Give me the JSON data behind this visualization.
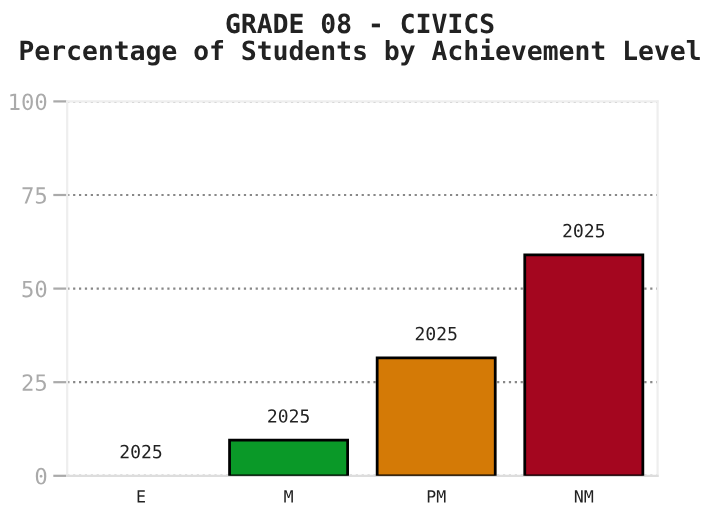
{
  "chart_data": {
    "type": "bar",
    "title": "GRADE 08 - CIVICS\nPercentage of Students by Achievement Level",
    "categories": [
      "E",
      "M",
      "PM",
      "NM"
    ],
    "values": [
      0,
      9.5,
      31.5,
      59
    ],
    "colors": [
      null,
      "#0a9928",
      "#d47a06",
      "#a4061f"
    ],
    "annotations": [
      {
        "text": "2025",
        "x": "E",
        "y": 0
      },
      {
        "text": "2025",
        "x": "M",
        "y": 9.5
      },
      {
        "text": "2025",
        "x": "PM",
        "y": 31.5
      },
      {
        "text": "2025",
        "x": "NM",
        "y": 59
      }
    ],
    "ylim": [
      0,
      100
    ],
    "yticks": [
      0,
      25,
      50,
      75,
      100
    ],
    "grid": "y"
  }
}
